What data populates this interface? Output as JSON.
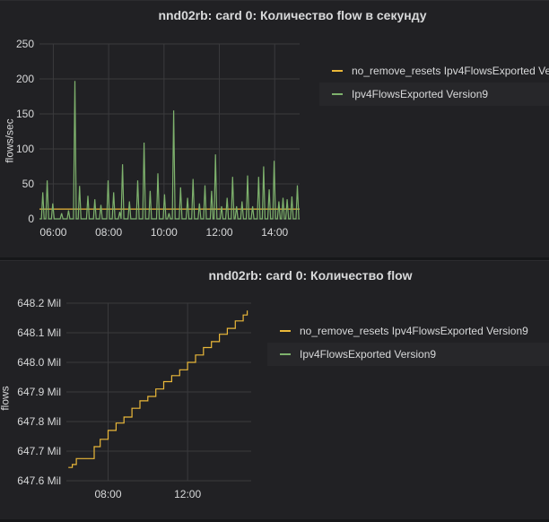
{
  "panels": [
    {
      "title": "nnd02rb: card 0: Количество flow в секунду",
      "ylabel": "flows/sec",
      "legend": [
        {
          "label": "no_remove_resets Ipv4FlowsExported Version9",
          "color": "#eab839"
        },
        {
          "label": "Ipv4FlowsExported Version9",
          "color": "#7eb26d"
        }
      ]
    },
    {
      "title": "nnd02rb: card 0: Количество flow",
      "ylabel": "flows",
      "legend": [
        {
          "label": "no_remove_resets Ipv4FlowsExported Version9",
          "color": "#eab839"
        },
        {
          "label": "Ipv4FlowsExported Version9",
          "color": "#7eb26d"
        }
      ]
    }
  ],
  "chart_data": [
    {
      "type": "line",
      "title": "nnd02rb: card 0: Количество flow в секунду",
      "ylabel": "flows/sec",
      "xlabel": "",
      "x_ticks": [
        "06:00",
        "08:00",
        "10:00",
        "12:00",
        "14:00"
      ],
      "y_ticks": [
        "0",
        "50",
        "100",
        "150",
        "200",
        "250"
      ],
      "ylim": [
        0,
        250
      ],
      "xlim_hours": [
        5.5,
        14.9
      ],
      "grid": true,
      "legend_position": "right",
      "series": [
        {
          "name": "no_remove_resets Ipv4FlowsExported Version9",
          "color": "#eab839",
          "x_hours": [
            5.5,
            14.9
          ],
          "values": [
            14,
            14
          ]
        },
        {
          "name": "Ipv4FlowsExported Version9",
          "color": "#7eb26d",
          "spikes": [
            [
              5.62,
              38
            ],
            [
              5.78,
              55
            ],
            [
              5.98,
              22
            ],
            [
              6.3,
              8
            ],
            [
              6.55,
              12
            ],
            [
              6.78,
              197
            ],
            [
              6.95,
              47
            ],
            [
              7.25,
              33
            ],
            [
              7.5,
              28
            ],
            [
              7.72,
              20
            ],
            [
              7.98,
              55
            ],
            [
              8.18,
              38
            ],
            [
              8.4,
              10
            ],
            [
              8.5,
              78
            ],
            [
              8.75,
              25
            ],
            [
              9.05,
              55
            ],
            [
              9.28,
              109
            ],
            [
              9.5,
              40
            ],
            [
              9.78,
              65
            ],
            [
              10.02,
              35
            ],
            [
              10.18,
              8
            ],
            [
              10.35,
              155
            ],
            [
              10.6,
              45
            ],
            [
              10.85,
              30
            ],
            [
              11.05,
              57
            ],
            [
              11.28,
              22
            ],
            [
              11.48,
              48
            ],
            [
              11.72,
              40
            ],
            [
              11.86,
              92
            ],
            [
              12.08,
              18
            ],
            [
              12.28,
              30
            ],
            [
              12.48,
              60
            ],
            [
              12.62,
              18
            ],
            [
              12.82,
              25
            ],
            [
              13.02,
              62
            ],
            [
              13.2,
              18
            ],
            [
              13.42,
              60
            ],
            [
              13.6,
              75
            ],
            [
              13.8,
              42
            ],
            [
              13.98,
              83
            ],
            [
              14.15,
              25
            ],
            [
              14.3,
              30
            ],
            [
              14.45,
              28
            ],
            [
              14.62,
              32
            ],
            [
              14.82,
              48
            ]
          ]
        }
      ]
    },
    {
      "type": "line",
      "title": "nnd02rb: card 0: Количество flow",
      "ylabel": "flows",
      "xlabel": "",
      "x_ticks": [
        "08:00",
        "12:00"
      ],
      "y_ticks": [
        "647.6 Mil",
        "647.7 Mil",
        "647.8 Mil",
        "647.9 Mil",
        "648.0 Mil",
        "648.1 Mil",
        "648.2 Mil"
      ],
      "ylim": [
        647.6,
        648.2
      ],
      "xlim_hours": [
        5.9,
        15.2
      ],
      "grid": true,
      "legend_position": "right",
      "series": [
        {
          "name": "no_remove_resets Ipv4FlowsExported Version9",
          "color": "#eab839",
          "x_hours": [
            6.0,
            6.2,
            6.4,
            7.2,
            7.3,
            7.6,
            8.0,
            8.4,
            8.8,
            9.2,
            9.6,
            10.0,
            10.4,
            10.8,
            11.2,
            11.6,
            12.0,
            12.4,
            12.8,
            13.2,
            13.6,
            14.0,
            14.4,
            14.8,
            15.0
          ],
          "values": [
            647.645,
            647.655,
            647.675,
            647.675,
            647.715,
            647.74,
            647.77,
            647.795,
            647.815,
            647.845,
            647.87,
            647.885,
            647.91,
            647.935,
            647.955,
            647.975,
            648.0,
            648.025,
            648.05,
            648.07,
            648.095,
            648.115,
            648.14,
            648.16,
            648.175
          ]
        }
      ]
    }
  ]
}
